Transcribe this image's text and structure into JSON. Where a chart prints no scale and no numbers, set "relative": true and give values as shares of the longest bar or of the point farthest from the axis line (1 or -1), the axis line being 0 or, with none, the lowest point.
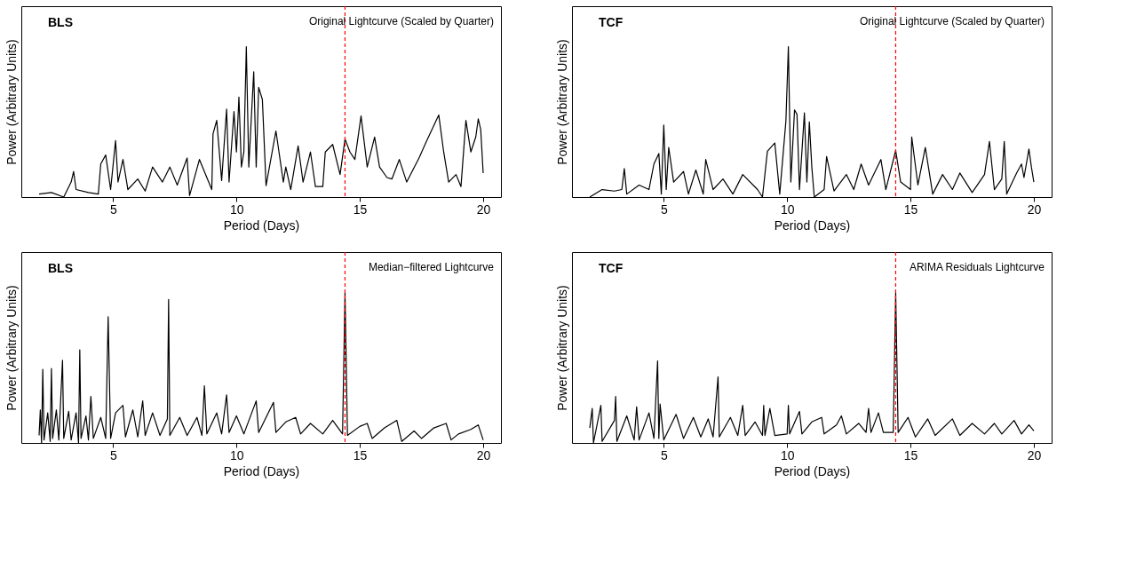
{
  "chart_data": [
    {
      "type": "line",
      "title": "BLS",
      "subtitle": "Original Lightcurve (Scaled by Quarter)",
      "xlabel": "Period (Days)",
      "ylabel": "Power (Arbitrary Units)",
      "relative": true,
      "xlim": [
        1.28,
        20.72
      ],
      "xticks": [
        5,
        10,
        15,
        20
      ],
      "x": [
        2.0,
        2.5,
        3.0,
        3.3,
        3.4,
        3.5,
        4.0,
        4.4,
        4.5,
        4.7,
        4.9,
        5.1,
        5.2,
        5.4,
        5.6,
        6.0,
        6.3,
        6.6,
        7.0,
        7.3,
        7.6,
        8.0,
        8.1,
        8.5,
        9.0,
        9.05,
        9.2,
        9.4,
        9.6,
        9.7,
        9.9,
        10.0,
        10.1,
        10.2,
        10.3,
        10.4,
        10.5,
        10.7,
        10.8,
        10.9,
        11.05,
        11.2,
        11.6,
        11.9,
        12.0,
        12.2,
        12.5,
        12.7,
        13.0,
        13.2,
        13.5,
        13.6,
        13.9,
        14.2,
        14.4,
        14.6,
        14.8,
        15.05,
        15.3,
        15.6,
        15.8,
        16.1,
        16.3,
        16.6,
        16.9,
        17.4,
        17.7,
        18.2,
        18.4,
        18.6,
        18.9,
        19.1,
        19.3,
        19.5,
        19.7,
        19.8,
        19.9,
        20.0
      ],
      "series": [
        {
          "color": "#000000",
          "values": [
            0.02,
            0.03,
            0.0,
            0.1,
            0.17,
            0.05,
            0.03,
            0.02,
            0.22,
            0.28,
            0.05,
            0.376,
            0.1,
            0.25,
            0.05,
            0.12,
            0.04,
            0.2,
            0.1,
            0.2,
            0.08,
            0.26,
            0.01,
            0.25,
            0.05,
            0.42,
            0.51,
            0.11,
            0.585,
            0.1,
            0.57,
            0.3,
            0.666,
            0.2,
            0.3,
            1.0,
            0.2,
            0.834,
            0.2,
            0.73,
            0.65,
            0.076,
            0.44,
            0.1,
            0.2,
            0.05,
            0.34,
            0.1,
            0.3,
            0.07,
            0.07,
            0.3,
            0.35,
            0.15,
            0.386,
            0.3,
            0.25,
            0.54,
            0.2,
            0.4,
            0.2,
            0.13,
            0.12,
            0.25,
            0.1,
            0.26,
            0.37,
            0.546,
            0.3,
            0.1,
            0.15,
            0.07,
            0.51,
            0.3,
            0.4,
            0.52,
            0.45,
            0.16
          ]
        }
      ],
      "ref_lines": [
        {
          "axis": "x",
          "value": 14.4,
          "color": "#ff0000",
          "line_style": "dashed"
        }
      ]
    },
    {
      "type": "line",
      "title": "TCF",
      "subtitle": "Original Lightcurve (Scaled by Quarter)",
      "xlabel": "Period (Days)",
      "ylabel": "Power (Arbitrary Units)",
      "relative": true,
      "xlim": [
        1.28,
        20.72
      ],
      "xticks": [
        5,
        10,
        15,
        20
      ],
      "x": [
        2.0,
        2.5,
        3.0,
        3.3,
        3.4,
        3.5,
        4.0,
        4.4,
        4.6,
        4.8,
        4.9,
        5.0,
        5.1,
        5.2,
        5.4,
        5.8,
        6.0,
        6.3,
        6.6,
        6.7,
        7.0,
        7.4,
        7.8,
        8.2,
        8.8,
        9.0,
        9.2,
        9.5,
        9.7,
        9.95,
        10.05,
        10.15,
        10.3,
        10.4,
        10.5,
        10.7,
        10.8,
        10.9,
        11.0,
        11.1,
        11.5,
        11.6,
        11.9,
        12.4,
        12.7,
        13.0,
        13.3,
        13.8,
        14.0,
        14.4,
        14.6,
        15.0,
        15.05,
        15.3,
        15.6,
        15.9,
        16.3,
        16.7,
        17.0,
        17.5,
        18.0,
        18.2,
        18.4,
        18.7,
        18.8,
        18.9,
        19.3,
        19.5,
        19.6,
        19.8,
        19.9,
        20.0
      ],
      "series": [
        {
          "color": "#000000",
          "values": [
            0.0,
            0.05,
            0.04,
            0.05,
            0.19,
            0.02,
            0.08,
            0.05,
            0.22,
            0.29,
            0.02,
            0.48,
            0.05,
            0.33,
            0.1,
            0.17,
            0.02,
            0.18,
            0.02,
            0.25,
            0.05,
            0.12,
            0.02,
            0.15,
            0.05,
            0.0,
            0.305,
            0.36,
            0.02,
            0.506,
            1.0,
            0.1,
            0.58,
            0.55,
            0.05,
            0.56,
            0.1,
            0.5,
            0.2,
            0.0,
            0.05,
            0.27,
            0.04,
            0.15,
            0.05,
            0.22,
            0.08,
            0.25,
            0.05,
            0.31,
            0.1,
            0.05,
            0.4,
            0.08,
            0.33,
            0.02,
            0.15,
            0.05,
            0.16,
            0.03,
            0.15,
            0.37,
            0.05,
            0.12,
            0.37,
            0.02,
            0.16,
            0.22,
            0.13,
            0.32,
            0.2,
            0.1
          ]
        }
      ],
      "ref_lines": [
        {
          "axis": "x",
          "value": 14.4,
          "color": "#ff0000",
          "line_style": "dashed"
        }
      ]
    },
    {
      "type": "line",
      "title": "BLS",
      "subtitle": "Median−filtered Lightcurve",
      "xlabel": "Period (Days)",
      "ylabel": "Power (Arbitrary Units)",
      "relative": true,
      "xlim": [
        1.28,
        20.72
      ],
      "xticks": [
        5,
        10,
        15,
        20
      ],
      "x": [
        2.0,
        2.05,
        2.1,
        2.15,
        2.2,
        2.35,
        2.45,
        2.5,
        2.55,
        2.7,
        2.8,
        2.95,
        3.0,
        3.2,
        3.3,
        3.5,
        3.6,
        3.65,
        3.7,
        3.9,
        4.0,
        4.1,
        4.2,
        4.5,
        4.7,
        4.8,
        4.9,
        5.1,
        5.4,
        5.5,
        5.8,
        6.0,
        6.2,
        6.3,
        6.6,
        6.9,
        7.2,
        7.25,
        7.3,
        7.7,
        8.0,
        8.4,
        8.6,
        8.7,
        8.8,
        9.2,
        9.4,
        9.6,
        9.7,
        10.0,
        10.3,
        10.8,
        10.9,
        11.5,
        11.6,
        12.0,
        12.4,
        12.6,
        13.0,
        13.5,
        13.9,
        14.3,
        14.4,
        14.5,
        15.0,
        15.3,
        15.5,
        16.0,
        16.5,
        16.7,
        17.2,
        17.5,
        18.0,
        18.5,
        18.7,
        19.0,
        19.5,
        19.8,
        20.0
      ],
      "series": [
        {
          "color": "#000000",
          "values": [
            0.05,
            0.22,
            0.0,
            0.49,
            0.02,
            0.2,
            0.01,
            0.495,
            0.03,
            0.22,
            0.02,
            0.55,
            0.03,
            0.21,
            0.02,
            0.2,
            0.0,
            0.62,
            0.03,
            0.18,
            0.02,
            0.31,
            0.03,
            0.17,
            0.03,
            0.84,
            0.03,
            0.2,
            0.25,
            0.04,
            0.22,
            0.04,
            0.28,
            0.05,
            0.2,
            0.05,
            0.16,
            0.955,
            0.05,
            0.17,
            0.05,
            0.17,
            0.05,
            0.38,
            0.06,
            0.2,
            0.06,
            0.32,
            0.07,
            0.18,
            0.06,
            0.28,
            0.07,
            0.27,
            0.07,
            0.14,
            0.17,
            0.06,
            0.13,
            0.06,
            0.15,
            0.06,
            1.0,
            0.05,
            0.11,
            0.13,
            0.03,
            0.1,
            0.15,
            0.01,
            0.08,
            0.03,
            0.1,
            0.13,
            0.02,
            0.06,
            0.09,
            0.12,
            0.02
          ]
        }
      ],
      "ref_lines": [
        {
          "axis": "x",
          "value": 14.4,
          "color": "#ff0000",
          "line_style": "dashed"
        }
      ]
    },
    {
      "type": "line",
      "title": "TCF",
      "subtitle": "ARIMA Residuals Lightcurve",
      "xlabel": "Period (Days)",
      "ylabel": "Power (Arbitrary Units)",
      "relative": true,
      "xlim": [
        1.28,
        20.72
      ],
      "xticks": [
        5,
        10,
        15,
        20
      ],
      "x": [
        2.0,
        2.1,
        2.15,
        2.45,
        2.5,
        3.0,
        3.05,
        3.1,
        3.5,
        3.8,
        3.9,
        4.0,
        4.4,
        4.6,
        4.75,
        4.8,
        4.85,
        5.0,
        5.5,
        5.8,
        6.2,
        6.5,
        6.8,
        7.0,
        7.2,
        7.25,
        7.7,
        8.0,
        8.2,
        8.3,
        8.7,
        9.0,
        9.05,
        9.1,
        9.3,
        9.5,
        10.0,
        10.05,
        10.1,
        10.5,
        10.6,
        11.0,
        11.4,
        11.5,
        12.0,
        12.2,
        12.4,
        12.9,
        13.2,
        13.3,
        13.4,
        13.7,
        13.9,
        14.3,
        14.4,
        14.5,
        14.9,
        15.2,
        15.7,
        16.0,
        16.7,
        17.0,
        17.5,
        18.0,
        18.4,
        18.7,
        19.2,
        19.5,
        19.8,
        20.0
      ],
      "series": [
        {
          "color": "#000000",
          "values": [
            0.1,
            0.23,
            0.0,
            0.25,
            0.01,
            0.15,
            0.31,
            0.01,
            0.18,
            0.02,
            0.24,
            0.02,
            0.2,
            0.03,
            0.546,
            0.03,
            0.26,
            0.02,
            0.19,
            0.03,
            0.17,
            0.04,
            0.16,
            0.04,
            0.44,
            0.04,
            0.17,
            0.05,
            0.25,
            0.05,
            0.14,
            0.05,
            0.25,
            0.05,
            0.23,
            0.05,
            0.06,
            0.25,
            0.06,
            0.21,
            0.06,
            0.14,
            0.17,
            0.06,
            0.12,
            0.18,
            0.06,
            0.13,
            0.07,
            0.23,
            0.07,
            0.2,
            0.07,
            0.07,
            1.0,
            0.07,
            0.17,
            0.04,
            0.16,
            0.05,
            0.16,
            0.05,
            0.13,
            0.06,
            0.13,
            0.06,
            0.15,
            0.06,
            0.12,
            0.08
          ]
        }
      ],
      "ref_lines": [
        {
          "axis": "x",
          "value": 14.4,
          "color": "#ff0000",
          "line_style": "dashed"
        }
      ]
    }
  ]
}
